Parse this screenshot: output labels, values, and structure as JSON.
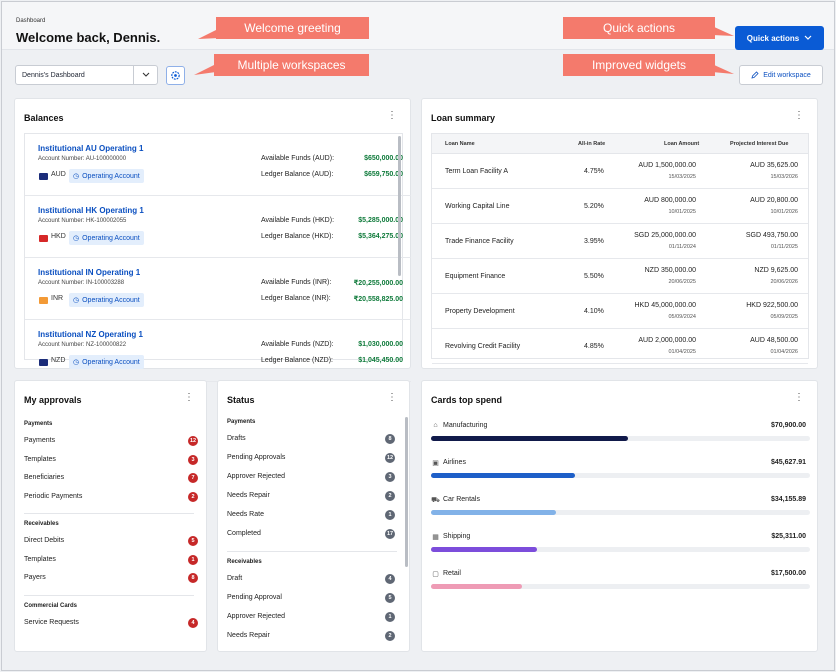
{
  "header": {
    "breadcrumb": "Dashboard",
    "title": "Welcome back, Dennis.",
    "quick_actions_label": "Quick actions"
  },
  "callouts": {
    "welcome": "Welcome greeting",
    "quick_actions": "Quick actions",
    "workspaces": "Multiple workspaces",
    "widgets": "Improved widgets",
    "color": "#f47a6c"
  },
  "workspace": {
    "selected": "Dennis's Dashboard",
    "edit_label": "Edit workspace"
  },
  "balances": {
    "title": "Balances",
    "accounts": [
      {
        "name": "Institutional AU Operating 1",
        "number": "Account Number: AU-100000000",
        "currency": "AUD",
        "type": "Operating Account",
        "avail_label": "Available Funds (AUD):",
        "avail": "$650,000.00",
        "ledger_label": "Ledger Balance (AUD):",
        "ledger": "$659,750.00"
      },
      {
        "name": "Institutional HK Operating 1",
        "number": "Account Number: HK-100002055",
        "currency": "HKD",
        "type": "Operating Account",
        "avail_label": "Available Funds (HKD):",
        "avail": "$5,285,000.00",
        "ledger_label": "Ledger Balance (HKD):",
        "ledger": "$5,364,275.00"
      },
      {
        "name": "Institutional IN Operating 1",
        "number": "Account Number: IN-100003288",
        "currency": "INR",
        "type": "Operating Account",
        "avail_label": "Available Funds (INR):",
        "avail": "₹20,255,000.00",
        "ledger_label": "Ledger Balance (INR):",
        "ledger": "₹20,558,825.00"
      },
      {
        "name": "Institutional NZ Operating 1",
        "number": "Account Number: NZ-100000822",
        "currency": "NZD",
        "type": "Operating Account",
        "avail_label": "Available Funds (NZD):",
        "avail": "$1,030,000.00",
        "ledger_label": "Ledger Balance (NZD):",
        "ledger": "$1,045,450.00"
      }
    ]
  },
  "loans": {
    "title": "Loan summary",
    "columns": [
      "Loan Name",
      "All-in Rate",
      "Loan Amount",
      "Projected Interest Due"
    ],
    "rows": [
      {
        "name": "Term Loan Facility A",
        "rate": "4.75%",
        "amount": "AUD 1,500,000.00",
        "amount_date": "15/03/2025",
        "interest": "AUD 35,625.00",
        "interest_date": "15/03/2026"
      },
      {
        "name": "Working Capital Line",
        "rate": "5.20%",
        "amount": "AUD 800,000.00",
        "amount_date": "10/01/2025",
        "interest": "AUD 20,800.00",
        "interest_date": "10/01/2026"
      },
      {
        "name": "Trade Finance Facility",
        "rate": "3.95%",
        "amount": "SGD 25,000,000.00",
        "amount_date": "01/11/2024",
        "interest": "SGD 493,750.00",
        "interest_date": "01/11/2025"
      },
      {
        "name": "Equipment Finance",
        "rate": "5.50%",
        "amount": "NZD 350,000.00",
        "amount_date": "20/06/2025",
        "interest": "NZD 9,625.00",
        "interest_date": "20/06/2026"
      },
      {
        "name": "Property Development",
        "rate": "4.10%",
        "amount": "HKD 45,000,000.00",
        "amount_date": "05/09/2024",
        "interest": "HKD 922,500.00",
        "interest_date": "05/09/2025"
      },
      {
        "name": "Revolving Credit Facility",
        "rate": "4.85%",
        "amount": "AUD 2,000,000.00",
        "amount_date": "01/04/2025",
        "interest": "AUD 48,500.00",
        "interest_date": "01/04/2026"
      }
    ]
  },
  "approvals": {
    "title": "My approvals",
    "sections": [
      {
        "heading": "Payments",
        "items": [
          {
            "label": "Payments",
            "count": "12"
          },
          {
            "label": "Templates",
            "count": "3"
          },
          {
            "label": "Beneficiaries",
            "count": "7"
          },
          {
            "label": "Periodic Payments",
            "count": "2"
          }
        ]
      },
      {
        "heading": "Receivables",
        "items": [
          {
            "label": "Direct Debits",
            "count": "5"
          },
          {
            "label": "Templates",
            "count": "1"
          },
          {
            "label": "Payers",
            "count": "8"
          }
        ]
      },
      {
        "heading": "Commercial Cards",
        "items": [
          {
            "label": "Service Requests",
            "count": "4"
          }
        ]
      }
    ],
    "badge_color": "#c62828"
  },
  "status": {
    "title": "Status",
    "sections": [
      {
        "heading": "Payments",
        "items": [
          {
            "label": "Drafts",
            "count": "8"
          },
          {
            "label": "Pending Approvals",
            "count": "12"
          },
          {
            "label": "Approver Rejected",
            "count": "3"
          },
          {
            "label": "Needs Repair",
            "count": "2"
          },
          {
            "label": "Needs Rate",
            "count": "1"
          },
          {
            "label": "Completed",
            "count": "17"
          }
        ]
      },
      {
        "heading": "Receivables",
        "items": [
          {
            "label": "Draft",
            "count": "4"
          },
          {
            "label": "Pending Approval",
            "count": "5"
          },
          {
            "label": "Approver Rejected",
            "count": "1"
          },
          {
            "label": "Needs Repair",
            "count": "2"
          }
        ]
      }
    ],
    "badge_color": "#5f6774"
  },
  "spend": {
    "title": "Cards top spend",
    "items": [
      {
        "label": "Manufacturing",
        "value": "$70,900.00",
        "icon": "tag-icon",
        "fraction": 0.52,
        "color": "#111a4a"
      },
      {
        "label": "Airlines",
        "value": "$45,627.91",
        "icon": "building-icon",
        "fraction": 0.38,
        "color": "#1e5fc8"
      },
      {
        "label": "Car Rentals",
        "value": "$34,155.89",
        "icon": "car-icon",
        "fraction": 0.33,
        "color": "#82b2e8"
      },
      {
        "label": "Shipping",
        "value": "$25,311.00",
        "icon": "box-icon",
        "fraction": 0.28,
        "color": "#7c4ddb"
      },
      {
        "label": "Retail",
        "value": "$17,500.00",
        "icon": "bag-icon",
        "fraction": 0.24,
        "color": "#ee9bb5"
      }
    ]
  }
}
